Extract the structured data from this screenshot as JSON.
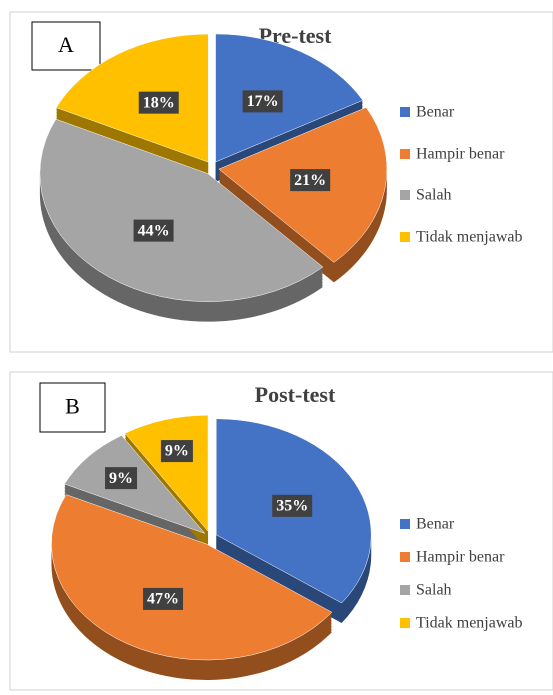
{
  "chart_data": [
    {
      "type": "pie",
      "panel": "A",
      "title": "Pre-test",
      "categories": [
        "Benar",
        "Hampir benar",
        "Salah",
        "Tidak menjawab"
      ],
      "values": [
        17,
        21,
        44,
        18
      ],
      "value_labels": [
        "17%",
        "21%",
        "44%",
        "18%"
      ],
      "colors": [
        "#4472c4",
        "#ed7d31",
        "#a5a5a5",
        "#ffc000"
      ],
      "legend": "right"
    },
    {
      "type": "pie",
      "panel": "B",
      "title": "Post-test",
      "categories": [
        "Benar",
        "Hampir benar",
        "Salah",
        "Tidak menjawab"
      ],
      "values": [
        35,
        47,
        9,
        9
      ],
      "value_labels": [
        "35%",
        "47%",
        "9%",
        "9%"
      ],
      "colors": [
        "#4472c4",
        "#ed7d31",
        "#a5a5a5",
        "#ffc000"
      ],
      "legend": "right"
    }
  ]
}
